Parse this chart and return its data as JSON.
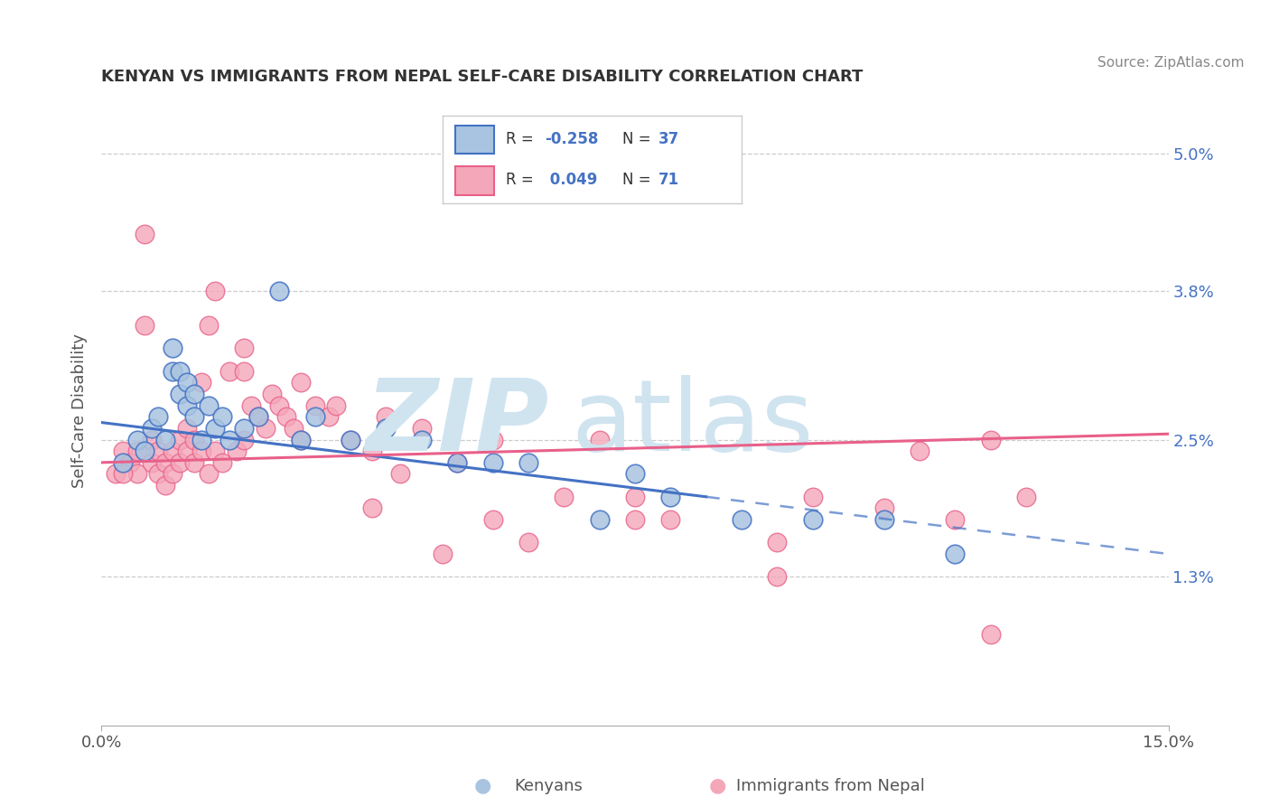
{
  "title": "KENYAN VS IMMIGRANTS FROM NEPAL SELF-CARE DISABILITY CORRELATION CHART",
  "source": "Source: ZipAtlas.com",
  "ylabel": "Self-Care Disability",
  "xlim": [
    0.0,
    15.0
  ],
  "ylim": [
    0.0,
    5.5
  ],
  "yticks": [
    1.3,
    2.5,
    3.8,
    5.0
  ],
  "ytick_labels": [
    "1.3%",
    "2.5%",
    "3.8%",
    "5.0%"
  ],
  "legend_kenyan": "Kenyans",
  "legend_nepal": "Immigrants from Nepal",
  "color_kenyan": "#a8c4e0",
  "color_nepal": "#f4a7b9",
  "line_color_kenyan": "#4472c4",
  "line_color_nepal": "#e8608a",
  "background_color": "#ffffff",
  "watermark_color": "#d0e4f0",
  "kenyan_x": [
    0.3,
    0.5,
    0.6,
    0.7,
    0.8,
    0.9,
    1.0,
    1.0,
    1.1,
    1.1,
    1.2,
    1.2,
    1.3,
    1.3,
    1.4,
    1.5,
    1.6,
    1.7,
    1.8,
    2.0,
    2.2,
    2.5,
    2.8,
    3.0,
    3.5,
    4.0,
    4.5,
    5.0,
    5.5,
    6.0,
    7.0,
    7.5,
    8.0,
    9.0,
    10.0,
    11.0,
    12.0
  ],
  "kenyan_y": [
    2.3,
    2.5,
    2.4,
    2.6,
    2.7,
    2.5,
    3.1,
    3.3,
    2.9,
    3.1,
    2.8,
    3.0,
    2.7,
    2.9,
    2.5,
    2.8,
    2.6,
    2.7,
    2.5,
    2.6,
    2.7,
    3.8,
    2.5,
    2.7,
    2.5,
    2.6,
    2.5,
    2.3,
    2.3,
    2.3,
    1.8,
    2.2,
    2.0,
    1.8,
    1.8,
    1.8,
    1.5
  ],
  "nepal_x": [
    0.2,
    0.3,
    0.4,
    0.5,
    0.5,
    0.6,
    0.7,
    0.7,
    0.8,
    0.8,
    0.9,
    0.9,
    1.0,
    1.0,
    1.1,
    1.1,
    1.2,
    1.2,
    1.3,
    1.3,
    1.4,
    1.5,
    1.5,
    1.6,
    1.7,
    1.8,
    1.9,
    2.0,
    2.0,
    2.1,
    2.2,
    2.3,
    2.4,
    2.5,
    2.6,
    2.7,
    2.8,
    3.0,
    3.2,
    3.5,
    3.8,
    4.0,
    4.5,
    5.0,
    5.5,
    6.5,
    7.0,
    7.5,
    8.0,
    9.5,
    10.0,
    11.0,
    11.5,
    12.0,
    12.5,
    13.0,
    0.3,
    0.6,
    1.4,
    1.6,
    2.0,
    2.8,
    3.3,
    3.8,
    4.2,
    4.8,
    5.5,
    6.0,
    7.5,
    9.5,
    12.5
  ],
  "nepal_y": [
    2.2,
    2.4,
    2.3,
    2.2,
    2.4,
    4.3,
    2.3,
    2.5,
    2.2,
    2.4,
    2.1,
    2.3,
    2.4,
    2.2,
    2.5,
    2.3,
    2.6,
    2.4,
    2.5,
    2.3,
    2.4,
    3.5,
    2.2,
    2.4,
    2.3,
    3.1,
    2.4,
    3.3,
    2.5,
    2.8,
    2.7,
    2.6,
    2.9,
    2.8,
    2.7,
    2.6,
    2.5,
    2.8,
    2.7,
    2.5,
    2.4,
    2.7,
    2.6,
    2.3,
    2.5,
    2.0,
    2.5,
    2.0,
    1.8,
    1.6,
    2.0,
    1.9,
    2.4,
    1.8,
    2.5,
    2.0,
    2.2,
    3.5,
    3.0,
    3.8,
    3.1,
    3.0,
    2.8,
    1.9,
    2.2,
    1.5,
    1.8,
    1.6,
    1.8,
    1.3,
    0.8
  ],
  "kenyan_line_x0": 0.0,
  "kenyan_line_y0": 2.65,
  "kenyan_line_x1": 8.5,
  "kenyan_line_y1": 2.0,
  "kenyan_dash_x0": 8.5,
  "kenyan_dash_y0": 2.0,
  "kenyan_dash_x1": 15.0,
  "kenyan_dash_y1": 1.5,
  "nepal_line_x0": 0.0,
  "nepal_line_y0": 2.3,
  "nepal_line_x1": 15.0,
  "nepal_line_y1": 2.55
}
